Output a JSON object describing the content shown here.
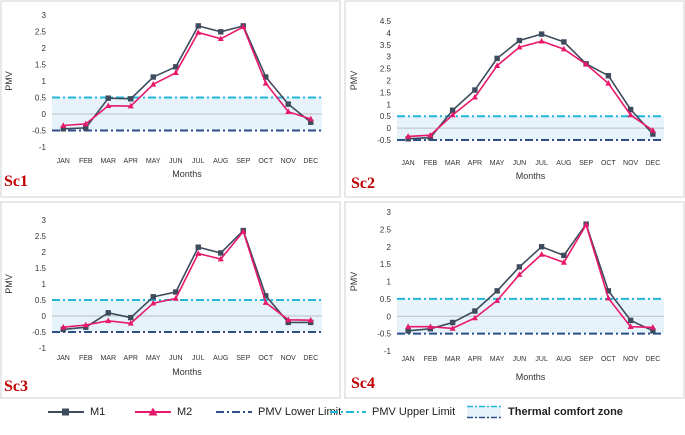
{
  "months": [
    "JAN",
    "FEB",
    "MAR",
    "APR",
    "MAY",
    "JUN",
    "JUL",
    "AUG",
    "SEP",
    "OCT",
    "NOV",
    "DEC"
  ],
  "colors": {
    "m1": "#3d4b5c",
    "m2": "#e8196b",
    "lower": "#2f4e8c",
    "upper": "#22b5d8",
    "zone_fill": "#e6f3fb",
    "scenario_label": "#c00000"
  },
  "legend": {
    "m1": "M1",
    "m2": "M2",
    "lower": "PMV Lower Limit",
    "upper": "PMV Upper Limit",
    "zone": "Thermal comfort zone"
  },
  "chart_data": [
    {
      "type": "line",
      "label": "Sc1",
      "xlabel": "Months",
      "ylabel": "PMV",
      "ylim": [
        -1,
        3
      ],
      "yticks": [
        "-1",
        "-0.5",
        "0",
        "0.5",
        "1",
        "1.5",
        "2",
        "2.5",
        "3"
      ],
      "series": [
        {
          "name": "M1",
          "values": [
            -0.45,
            -0.42,
            0.48,
            0.46,
            1.12,
            1.43,
            2.67,
            2.49,
            2.67,
            1.12,
            0.3,
            -0.25
          ]
        },
        {
          "name": "M2",
          "values": [
            -0.35,
            -0.3,
            0.25,
            0.24,
            0.9,
            1.25,
            2.47,
            2.28,
            2.64,
            0.93,
            0.07,
            -0.15
          ]
        }
      ],
      "limits": {
        "lower": -0.5,
        "upper": 0.5
      }
    },
    {
      "type": "line",
      "label": "Sc2",
      "xlabel": "Months",
      "ylabel": "PMV",
      "ylim": [
        -0.5,
        4.5
      ],
      "yticks": [
        "-0.5",
        "0",
        "0.5",
        "1",
        "1.5",
        "2",
        "2.5",
        "3",
        "3.5",
        "4",
        "4.5"
      ],
      "series": [
        {
          "name": "M1",
          "values": [
            -0.45,
            -0.4,
            0.75,
            1.6,
            2.93,
            3.68,
            3.95,
            3.62,
            2.7,
            2.2,
            0.78,
            -0.25
          ]
        },
        {
          "name": "M2",
          "values": [
            -0.35,
            -0.3,
            0.55,
            1.3,
            2.62,
            3.4,
            3.65,
            3.32,
            2.68,
            1.88,
            0.55,
            -0.1
          ]
        }
      ],
      "limits": {
        "lower": -0.5,
        "upper": 0.5
      }
    },
    {
      "type": "line",
      "label": "Sc3",
      "xlabel": "Months",
      "ylabel": "PMV",
      "ylim": [
        -1,
        3
      ],
      "yticks": [
        "-1",
        "-0.5",
        "0",
        "0.5",
        "1",
        "1.5",
        "2",
        "2.5",
        "3"
      ],
      "series": [
        {
          "name": "M1",
          "values": [
            -0.42,
            -0.35,
            0.1,
            -0.05,
            0.6,
            0.75,
            2.15,
            1.97,
            2.67,
            0.63,
            -0.2,
            -0.2
          ]
        },
        {
          "name": "M2",
          "values": [
            -0.35,
            -0.28,
            -0.15,
            -0.23,
            0.4,
            0.55,
            1.95,
            1.78,
            2.64,
            0.42,
            -0.12,
            -0.13
          ]
        }
      ],
      "limits": {
        "lower": -0.5,
        "upper": 0.5
      }
    },
    {
      "type": "line",
      "label": "Sc4",
      "xlabel": "Months",
      "ylabel": "PMV",
      "ylim": [
        -1,
        3
      ],
      "yticks": [
        "-1",
        "-0.5",
        "0",
        "0.5",
        "1",
        "1.5",
        "2",
        "2.5",
        "3"
      ],
      "series": [
        {
          "name": "M1",
          "values": [
            -0.42,
            -0.36,
            -0.18,
            0.15,
            0.73,
            1.42,
            2.0,
            1.75,
            2.65,
            0.73,
            -0.12,
            -0.42
          ]
        },
        {
          "name": "M2",
          "values": [
            -0.3,
            -0.3,
            -0.35,
            -0.05,
            0.45,
            1.2,
            1.78,
            1.55,
            2.63,
            0.52,
            -0.3,
            -0.32
          ]
        }
      ],
      "limits": {
        "lower": -0.5,
        "upper": 0.5
      }
    }
  ]
}
